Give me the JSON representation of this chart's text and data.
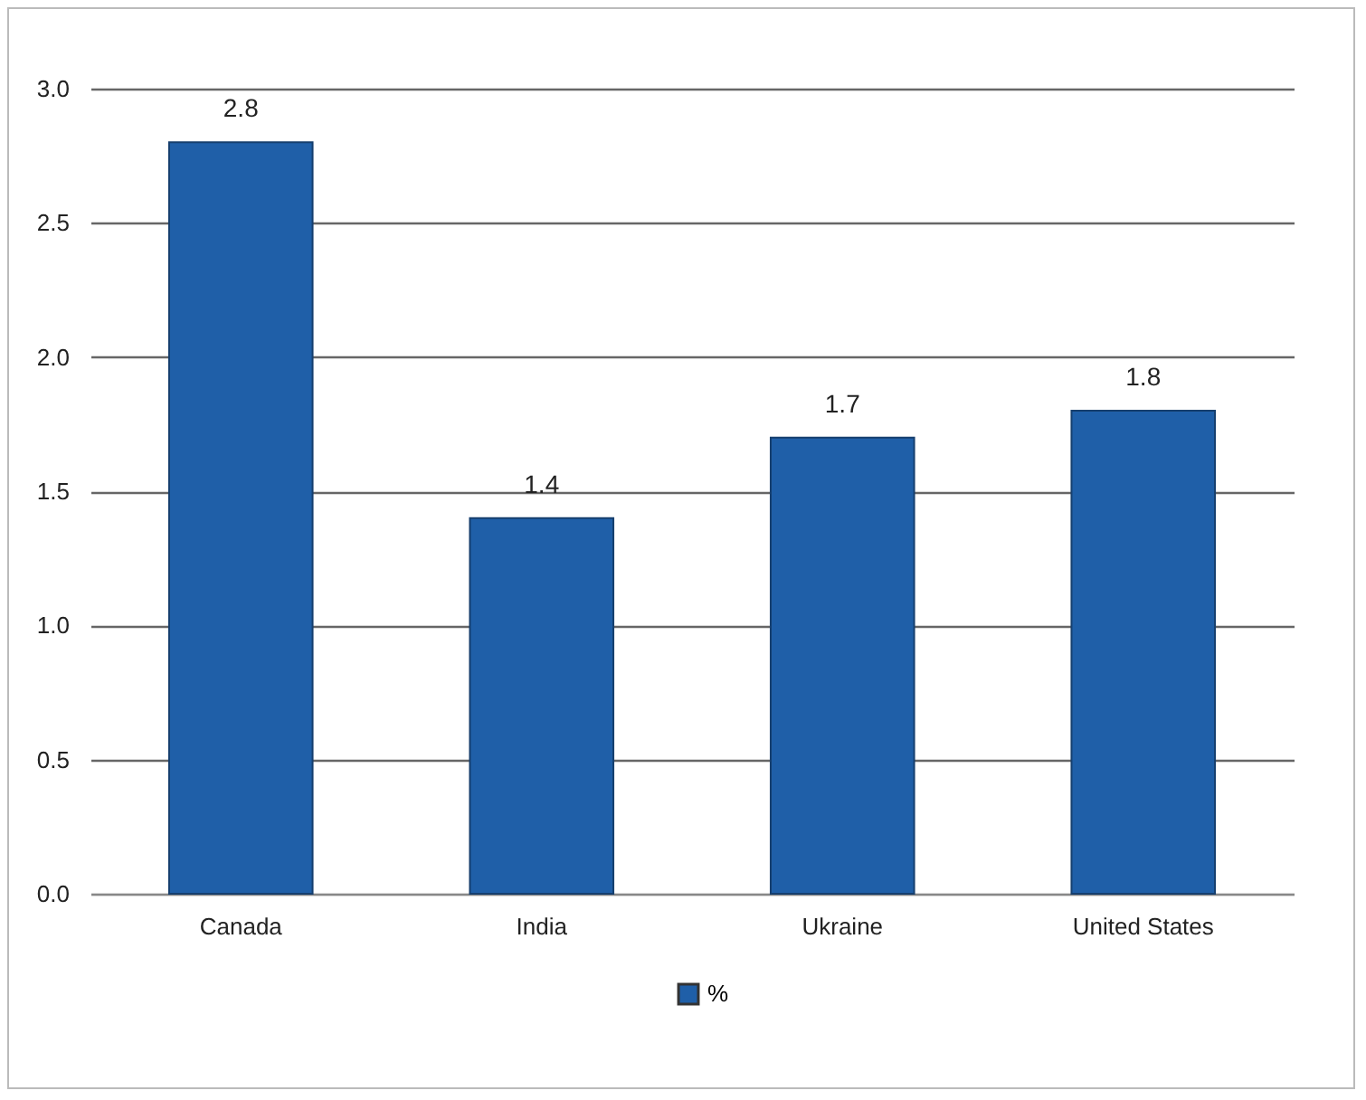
{
  "chart_data": {
    "type": "bar",
    "categories": [
      "Canada",
      "India",
      "Ukraine",
      "United States"
    ],
    "series": [
      {
        "name": "%",
        "color": "#1f5fa8",
        "values": [
          2.8,
          1.4,
          1.7,
          1.8
        ]
      }
    ],
    "ylim": [
      0,
      3.0
    ],
    "yticks": [
      {
        "value": 0,
        "label": "0.0"
      },
      {
        "value": 0.5,
        "label": "0.5"
      },
      {
        "value": 1,
        "label": "1.0"
      },
      {
        "value": 1.5,
        "label": "1.5"
      },
      {
        "value": 2,
        "label": "2.0"
      },
      {
        "value": 2.5,
        "label": "2.5"
      },
      {
        "value": 3,
        "label": "3.0"
      }
    ],
    "grid": "y",
    "legend": "bottom",
    "data_labels": true
  }
}
